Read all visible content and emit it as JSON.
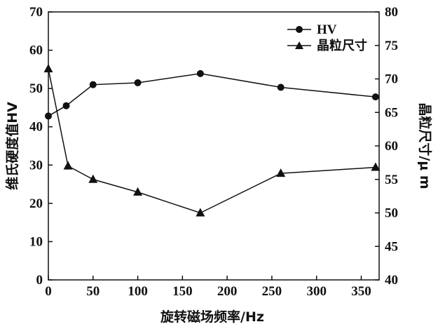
{
  "chart_data": {
    "type": "line",
    "xlabel": "旋转磁场频率/Hz",
    "ylabel_left": "维氏硬度值HV",
    "ylabel_right": "晶粒尺寸/μ m",
    "xlim": [
      0,
      370
    ],
    "ylim_left": [
      0,
      70
    ],
    "ylim_right": [
      40,
      80
    ],
    "xticks": [
      0,
      50,
      100,
      150,
      200,
      250,
      300,
      350
    ],
    "yticks_left": [
      0,
      10,
      20,
      30,
      40,
      50,
      60,
      70
    ],
    "yticks_right": [
      40,
      45,
      50,
      55,
      60,
      65,
      70,
      75,
      80
    ],
    "grid": false,
    "legend_position": "top-right",
    "series": [
      {
        "name": "HV",
        "axis": "left",
        "marker": "circle",
        "x": [
          0,
          20,
          50,
          100,
          170,
          260,
          366
        ],
        "y": [
          42.8,
          45.5,
          51.0,
          51.5,
          53.9,
          50.3,
          47.8
        ]
      },
      {
        "name": "晶粒尺寸",
        "axis": "right",
        "marker": "triangle",
        "x": [
          0,
          22,
          50,
          100,
          170,
          260,
          366
        ],
        "y": [
          71.5,
          57.0,
          55.0,
          53.1,
          50.0,
          55.9,
          56.8
        ]
      }
    ]
  }
}
